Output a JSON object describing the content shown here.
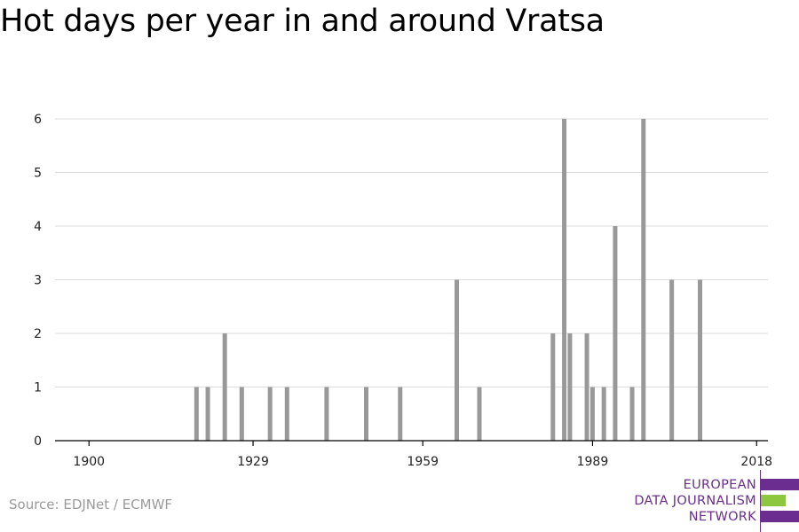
{
  "title": "Hot days per year in and around Vratsa",
  "source": "Source: EDJNet / ECMWF",
  "logo": {
    "lines": [
      "EUROPEAN",
      "DATA JOURNALISM",
      "NETWORK"
    ],
    "colors": {
      "purple": "#6b2d8f",
      "green": "#8dc63f"
    }
  },
  "chart_data": {
    "type": "bar",
    "title": "Hot days per year in and around Vratsa",
    "xlabel": "",
    "ylabel": "",
    "xlim": [
      1894,
      2020
    ],
    "ylim": [
      0,
      6
    ],
    "x_ticks": [
      1900,
      1929,
      1959,
      1989,
      2018
    ],
    "y_ticks": [
      0,
      1,
      2,
      3,
      4,
      5,
      6
    ],
    "grid": true,
    "bar_color": "#999999",
    "x": [
      1919,
      1921,
      1924,
      1927,
      1932,
      1935,
      1942,
      1949,
      1955,
      1965,
      1969,
      1982,
      1984,
      1985,
      1988,
      1989,
      1991,
      1993,
      1996,
      1998,
      2003,
      2008,
      2013
    ],
    "values": [
      1,
      1,
      2,
      1,
      1,
      1,
      1,
      1,
      1,
      3,
      1,
      2,
      6,
      2,
      2,
      1,
      1,
      4,
      1,
      6,
      3,
      3,
      0
    ]
  }
}
